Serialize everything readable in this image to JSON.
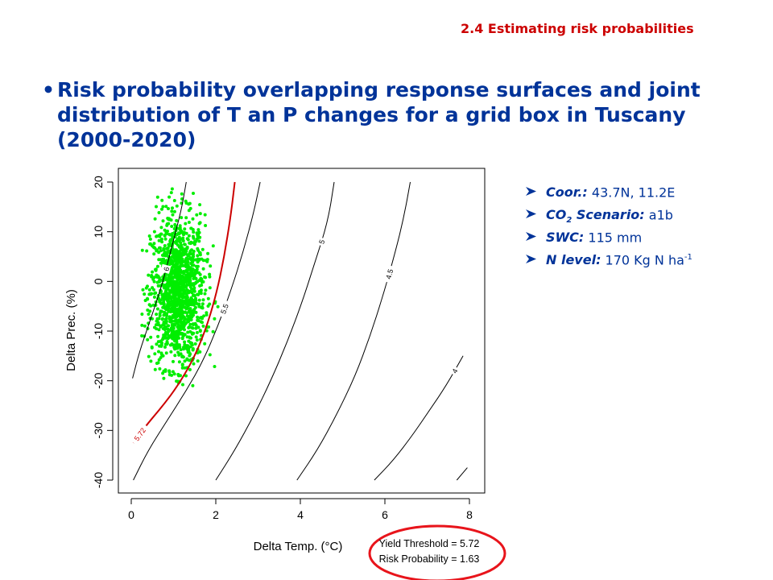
{
  "header": {
    "section_title": "2.4 Estimating risk probabilities"
  },
  "headline": {
    "bullet": "•",
    "text": "Risk probability overlapping response surfaces and joint distribution of T an P changes for a grid box in Tuscany (2000-2020)"
  },
  "parameters": [
    {
      "label_pre": "Coor.:",
      "label_sub": "",
      "label_post": "",
      "value": " 43.7N, 11.2E",
      "value_sup": ""
    },
    {
      "label_pre": "CO",
      "label_sub": "2",
      "label_post": " Scenario:",
      "value": " a1b",
      "value_sup": ""
    },
    {
      "label_pre": "SWC:",
      "label_sub": "",
      "label_post": "",
      "value": " 115 mm",
      "value_sup": ""
    },
    {
      "label_pre": "N level:",
      "label_sub": "",
      "label_post": "",
      "value": " 170 Kg N ha",
      "value_sup": "-1"
    }
  ],
  "colors": {
    "title_red": "#cc0000",
    "text_blue": "#003399",
    "threshold_red": "#cc0000",
    "scatter_green": "#00ee00",
    "ellipse_red": "#e8141b"
  },
  "icons": {
    "param_bullet": "arrow-bullet-icon"
  },
  "chart_data": {
    "type": "scatter",
    "xlabel": "Delta Temp. (°C)",
    "ylabel": "Delta Prec. (%)",
    "xlim": [
      0,
      8
    ],
    "ylim": [
      -40,
      20
    ],
    "x_ticks": [
      0,
      2,
      4,
      6,
      8
    ],
    "y_ticks": [
      -40,
      -30,
      -20,
      -10,
      0,
      10,
      20
    ],
    "grid": false,
    "contours": [
      {
        "level": "6",
        "points": [
          [
            0.03,
            -19.5
          ],
          [
            0.2,
            -14
          ],
          [
            0.4,
            -9
          ],
          [
            0.6,
            -4
          ],
          [
            0.75,
            0
          ],
          [
            0.9,
            5
          ],
          [
            1.05,
            10
          ],
          [
            1.2,
            15
          ],
          [
            1.3,
            20
          ]
        ]
      },
      {
        "level": "5.5",
        "points": [
          [
            0.05,
            -40
          ],
          [
            0.4,
            -34
          ],
          [
            0.85,
            -28
          ],
          [
            1.3,
            -22
          ],
          [
            1.7,
            -16
          ],
          [
            2.05,
            -9
          ],
          [
            2.35,
            -2
          ],
          [
            2.65,
            6
          ],
          [
            2.9,
            14
          ],
          [
            3.05,
            20
          ]
        ]
      },
      {
        "level": "5",
        "points": [
          [
            2.0,
            -40
          ],
          [
            2.45,
            -34
          ],
          [
            2.9,
            -27
          ],
          [
            3.3,
            -20
          ],
          [
            3.7,
            -12
          ],
          [
            4.05,
            -4
          ],
          [
            4.35,
            4
          ],
          [
            4.65,
            12
          ],
          [
            4.8,
            20
          ]
        ]
      },
      {
        "level": "4.5",
        "points": [
          [
            3.92,
            -40
          ],
          [
            4.4,
            -34
          ],
          [
            4.85,
            -27
          ],
          [
            5.3,
            -19
          ],
          [
            5.65,
            -11
          ],
          [
            5.95,
            -3
          ],
          [
            6.25,
            6
          ],
          [
            6.45,
            13
          ],
          [
            6.6,
            20
          ]
        ]
      },
      {
        "level": "4",
        "points": [
          [
            5.75,
            -40
          ],
          [
            6.2,
            -36
          ],
          [
            6.65,
            -31
          ],
          [
            7.05,
            -26
          ],
          [
            7.45,
            -21
          ],
          [
            7.85,
            -15
          ]
        ]
      },
      {
        "level": "",
        "points": [
          [
            7.7,
            -40
          ],
          [
            7.95,
            -37.5
          ]
        ]
      }
    ],
    "threshold": {
      "level": "5.72",
      "points": [
        [
          0.05,
          -32.5
        ],
        [
          0.35,
          -29
        ],
        [
          0.75,
          -25
        ],
        [
          1.1,
          -21
        ],
        [
          1.45,
          -16
        ],
        [
          1.75,
          -10
        ],
        [
          2.0,
          -3
        ],
        [
          2.2,
          5
        ],
        [
          2.35,
          13
        ],
        [
          2.45,
          20
        ]
      ]
    },
    "scatter": {
      "series": "joint distribution of T and P changes",
      "center_x": 1.1,
      "center_y": -2,
      "sd_x": 0.32,
      "sd_y": 7.6,
      "x_range": [
        0.2,
        2.1
      ],
      "y_range": [
        -21,
        19
      ],
      "n_points": 1400
    },
    "annotation": {
      "lines": [
        "Yield Threshold = 5.72",
        "Risk Probability = 1.63"
      ]
    }
  }
}
